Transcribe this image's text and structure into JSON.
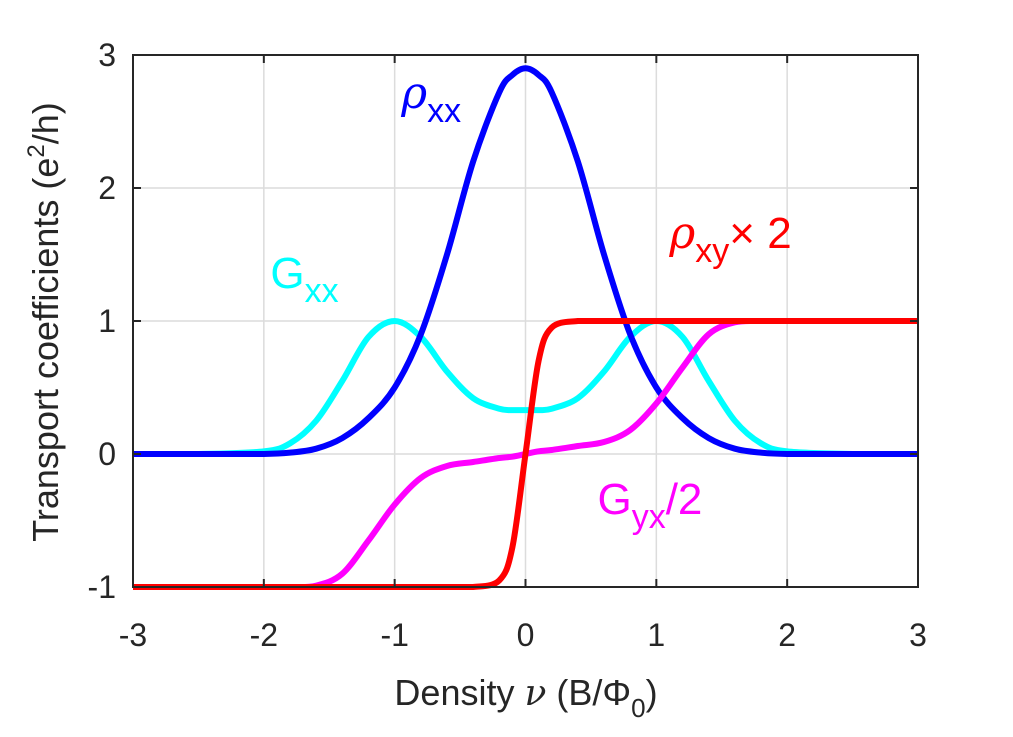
{
  "chart_data": {
    "type": "line",
    "title": "",
    "xlabel": {
      "pre": "Density ",
      "nu": "ν",
      "mid": " (B/",
      "phi": "Φ",
      "sub": "0",
      "post": ")"
    },
    "ylabel": {
      "pre": "Transport coefficients (e",
      "sup": "2",
      "post": "/h)"
    },
    "xlim": [
      -3,
      3
    ],
    "ylim": [
      -1,
      3
    ],
    "xticks": [
      -3,
      -2,
      -1,
      0,
      1,
      2,
      3
    ],
    "yticks": [
      -1,
      0,
      1,
      2,
      3
    ],
    "xtick_labels": [
      "-3",
      "-2",
      "-1",
      "0",
      "1",
      "2",
      "3"
    ],
    "ytick_labels": [
      "-1",
      "0",
      "1",
      "2",
      "3"
    ],
    "grid": true,
    "x": [
      -3.0,
      -2.5,
      -2.0,
      -1.8,
      -1.6,
      -1.4,
      -1.2,
      -1.0,
      -0.8,
      -0.6,
      -0.4,
      -0.2,
      -0.1,
      0.0,
      0.1,
      0.2,
      0.4,
      0.6,
      0.8,
      1.0,
      1.2,
      1.4,
      1.6,
      1.8,
      2.0,
      2.5,
      3.0
    ],
    "series": [
      {
        "name": "Gxx",
        "color": "#00FFFF",
        "values": [
          0.0,
          0.0,
          0.02,
          0.08,
          0.25,
          0.55,
          0.88,
          1.0,
          0.88,
          0.62,
          0.42,
          0.34,
          0.33,
          0.33,
          0.33,
          0.34,
          0.42,
          0.62,
          0.88,
          1.0,
          0.88,
          0.55,
          0.25,
          0.08,
          0.02,
          0.0,
          0.0
        ]
      },
      {
        "name": "ρxx",
        "color": "#0000FF",
        "values": [
          0.0,
          0.0,
          0.0,
          0.01,
          0.04,
          0.12,
          0.27,
          0.5,
          0.9,
          1.5,
          2.2,
          2.72,
          2.85,
          2.9,
          2.85,
          2.72,
          2.2,
          1.5,
          0.9,
          0.5,
          0.27,
          0.12,
          0.04,
          0.01,
          0.0,
          0.0,
          0.0
        ]
      },
      {
        "name": "Gyx/2",
        "color": "#FF00FF",
        "values": [
          -1.0,
          -1.0,
          -1.0,
          -1.0,
          -0.99,
          -0.9,
          -0.65,
          -0.38,
          -0.18,
          -0.09,
          -0.06,
          -0.03,
          -0.02,
          0.0,
          0.02,
          0.03,
          0.06,
          0.09,
          0.18,
          0.38,
          0.65,
          0.9,
          0.99,
          1.0,
          1.0,
          1.0,
          1.0
        ]
      },
      {
        "name": "ρxy× 2",
        "color": "#FF0000",
        "values": [
          -1.0,
          -1.0,
          -1.0,
          -1.0,
          -1.0,
          -1.0,
          -1.0,
          -1.0,
          -1.0,
          -1.0,
          -1.0,
          -0.95,
          -0.7,
          0.0,
          0.7,
          0.95,
          1.0,
          1.0,
          1.0,
          1.0,
          1.0,
          1.0,
          1.0,
          1.0,
          1.0,
          1.0,
          1.0
        ]
      }
    ],
    "annotations": [
      {
        "id": "rhoxx",
        "main": "ρ",
        "sub": "xx",
        "tail": "",
        "color": "#0000FF",
        "x": -0.95,
        "y": 2.6
      },
      {
        "id": "gxx",
        "main": "G",
        "sub": "xx",
        "tail": "",
        "color": "#00FFFF",
        "x": -1.95,
        "y": 1.25
      },
      {
        "id": "rhoxy",
        "main": "ρ",
        "sub": "xy",
        "tail": "× 2",
        "color": "#FF0000",
        "x": 1.1,
        "y": 1.55
      },
      {
        "id": "gyx",
        "main": "G",
        "sub": "yx",
        "tail": "/2",
        "color": "#FF00FF",
        "x": 0.55,
        "y": -0.45
      }
    ]
  }
}
